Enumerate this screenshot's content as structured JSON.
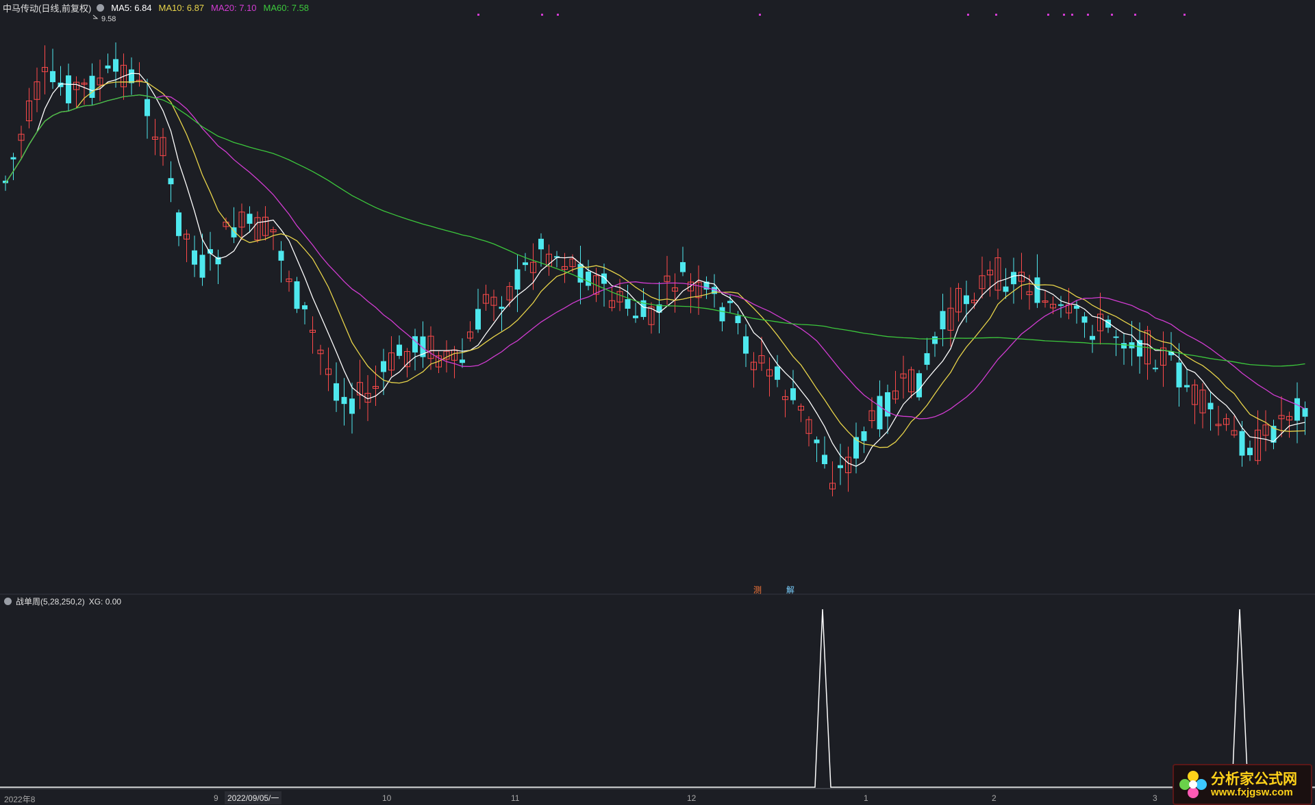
{
  "main_legend": {
    "title": "中马传动(日线,前复权)",
    "ma": [
      {
        "label": "MA5: 6.84",
        "color": "#ffffff"
      },
      {
        "label": "MA10: 6.87",
        "color": "#e8d44a"
      },
      {
        "label": "MA20: 7.10",
        "color": "#d23cd2"
      },
      {
        "label": "MA60: 7.58",
        "color": "#3cc83c"
      }
    ]
  },
  "high_marker": "9.58",
  "sub_legend": {
    "title": "战单周(5,28,250,2)",
    "value": "XG: 0.00"
  },
  "markers": [
    {
      "text": "测",
      "color": "#ff7a3a"
    },
    {
      "text": "解",
      "color": "#7ad0ff"
    }
  ],
  "time_axis": {
    "labels": [
      "2022年8",
      "9",
      "10",
      "11",
      "12",
      "1",
      "2",
      "3"
    ],
    "cursor_date": "2022/09/05/一"
  },
  "logo": {
    "line1": "分析家公式网",
    "line2": "www.fxjgsw.com"
  },
  "colors": {
    "up": "#ff4a4a",
    "down": "#4ee8ee",
    "ma5": "#ffffff",
    "ma10": "#e8d44a",
    "ma20": "#d23cd2",
    "ma60": "#3cc83c",
    "indicator": "#ffffff",
    "signal_dots": "#d23cd2"
  },
  "chart_data": {
    "type": "candlestick",
    "price_high": 9.58,
    "ma_current": {
      "MA5": 6.84,
      "MA10": 6.87,
      "MA20": 7.1,
      "MA60": 7.58
    },
    "indicator_spikes": 2
  }
}
